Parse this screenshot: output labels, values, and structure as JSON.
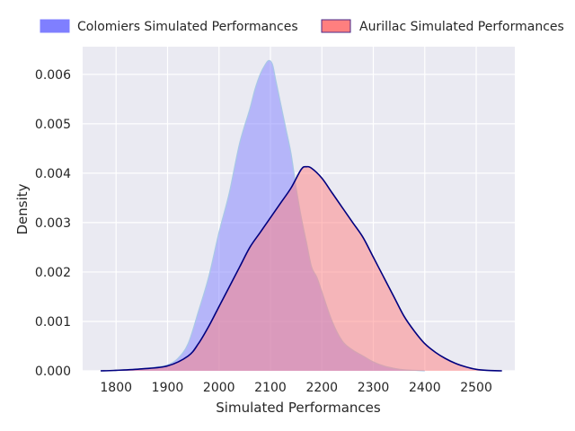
{
  "chart_data": {
    "type": "area",
    "xlabel": "Simulated Performances",
    "ylabel": "Density",
    "xlim": [
      1735,
      2575
    ],
    "ylim": [
      0,
      0.00656
    ],
    "x_ticks": [
      1800,
      1900,
      2000,
      2100,
      2200,
      2300,
      2400,
      2500
    ],
    "x_tick_labels": [
      "1800",
      "1900",
      "2000",
      "2100",
      "2200",
      "2300",
      "2400",
      "2500"
    ],
    "y_ticks": [
      0,
      0.001,
      0.002,
      0.003,
      0.004,
      0.005,
      0.006
    ],
    "y_tick_labels": [
      "0.000",
      "0.001",
      "0.002",
      "0.003",
      "0.004",
      "0.005",
      "0.006"
    ],
    "grid": true,
    "legend_position": "top",
    "series": [
      {
        "name": "Colomiers Simulated Performances",
        "fill": "#7f7fff",
        "line": "#a8c8e6",
        "x": [
          1770,
          1800,
          1850,
          1880,
          1900,
          1920,
          1940,
          1960,
          1980,
          2000,
          2020,
          2040,
          2060,
          2070,
          2080,
          2090,
          2097,
          2104,
          2110,
          2120,
          2130,
          2140,
          2150,
          2160,
          2170,
          2180,
          2190,
          2200,
          2220,
          2240,
          2260,
          2280,
          2300,
          2320,
          2340,
          2360,
          2380,
          2400
        ],
        "y": [
          0,
          1e-05,
          4e-05,
          8e-05,
          0.00012,
          0.00025,
          0.00055,
          0.0012,
          0.0019,
          0.0028,
          0.0036,
          0.0046,
          0.0053,
          0.0057,
          0.006,
          0.0062,
          0.00628,
          0.0062,
          0.0059,
          0.0054,
          0.0049,
          0.0044,
          0.0037,
          0.0031,
          0.0026,
          0.0021,
          0.0019,
          0.0016,
          0.001,
          0.0006,
          0.00042,
          0.0003,
          0.00018,
          0.0001,
          5e-05,
          2e-05,
          1e-05,
          0
        ]
      },
      {
        "name": "Aurillac Simulated Performances",
        "fill": "#ff7f7f",
        "line": "#00007f",
        "x": [
          1770,
          1800,
          1850,
          1900,
          1940,
          1960,
          1980,
          2000,
          2020,
          2040,
          2060,
          2080,
          2100,
          2120,
          2140,
          2160,
          2170,
          2180,
          2200,
          2220,
          2240,
          2260,
          2280,
          2300,
          2320,
          2340,
          2360,
          2380,
          2400,
          2420,
          2440,
          2460,
          2480,
          2500,
          2520,
          2550
        ],
        "y": [
          0,
          1e-05,
          4e-05,
          0.0001,
          0.0003,
          0.00055,
          0.0009,
          0.0013,
          0.0017,
          0.0021,
          0.0025,
          0.0028,
          0.0031,
          0.0034,
          0.0037,
          0.00408,
          0.00413,
          0.0041,
          0.0039,
          0.0036,
          0.0033,
          0.003,
          0.0027,
          0.0023,
          0.0019,
          0.0015,
          0.0011,
          0.0008,
          0.00055,
          0.00038,
          0.00025,
          0.00015,
          8e-05,
          3e-05,
          1e-05,
          0
        ]
      }
    ]
  }
}
